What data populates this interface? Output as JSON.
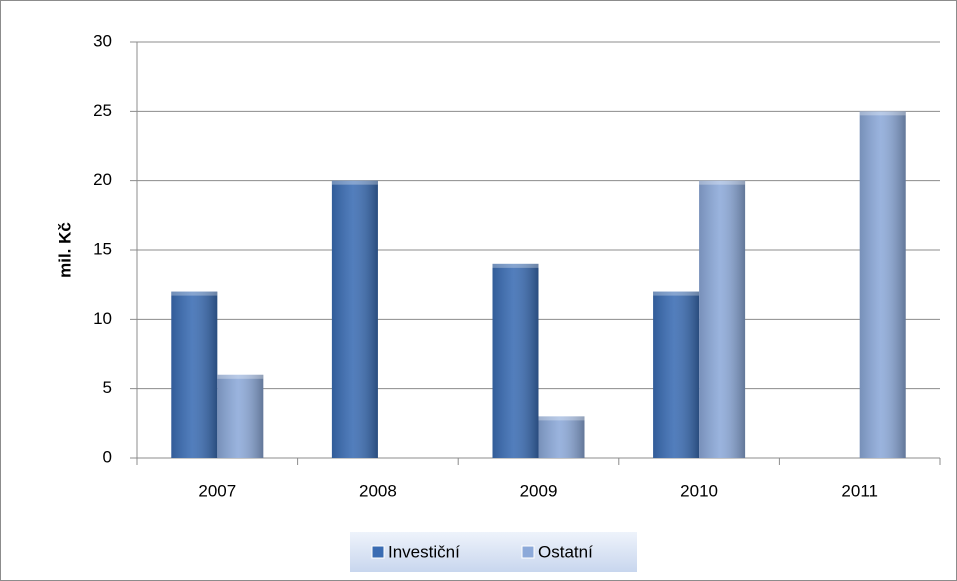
{
  "chart_data": {
    "type": "bar",
    "categories": [
      "2007",
      "2008",
      "2009",
      "2010",
      "2011"
    ],
    "series": [
      {
        "name": "Investiční",
        "color": "#3a6cb3",
        "values": [
          12,
          20,
          14,
          12,
          0
        ]
      },
      {
        "name": "Ostatní",
        "color": "#8ca9d9",
        "values": [
          6,
          0,
          3,
          20,
          25
        ]
      }
    ],
    "ylabel": "mil. Kč",
    "ylim": [
      0,
      30
    ],
    "yticks": [
      0,
      5,
      10,
      15,
      20,
      25,
      30
    ],
    "grid": true,
    "legend": "bottom"
  }
}
